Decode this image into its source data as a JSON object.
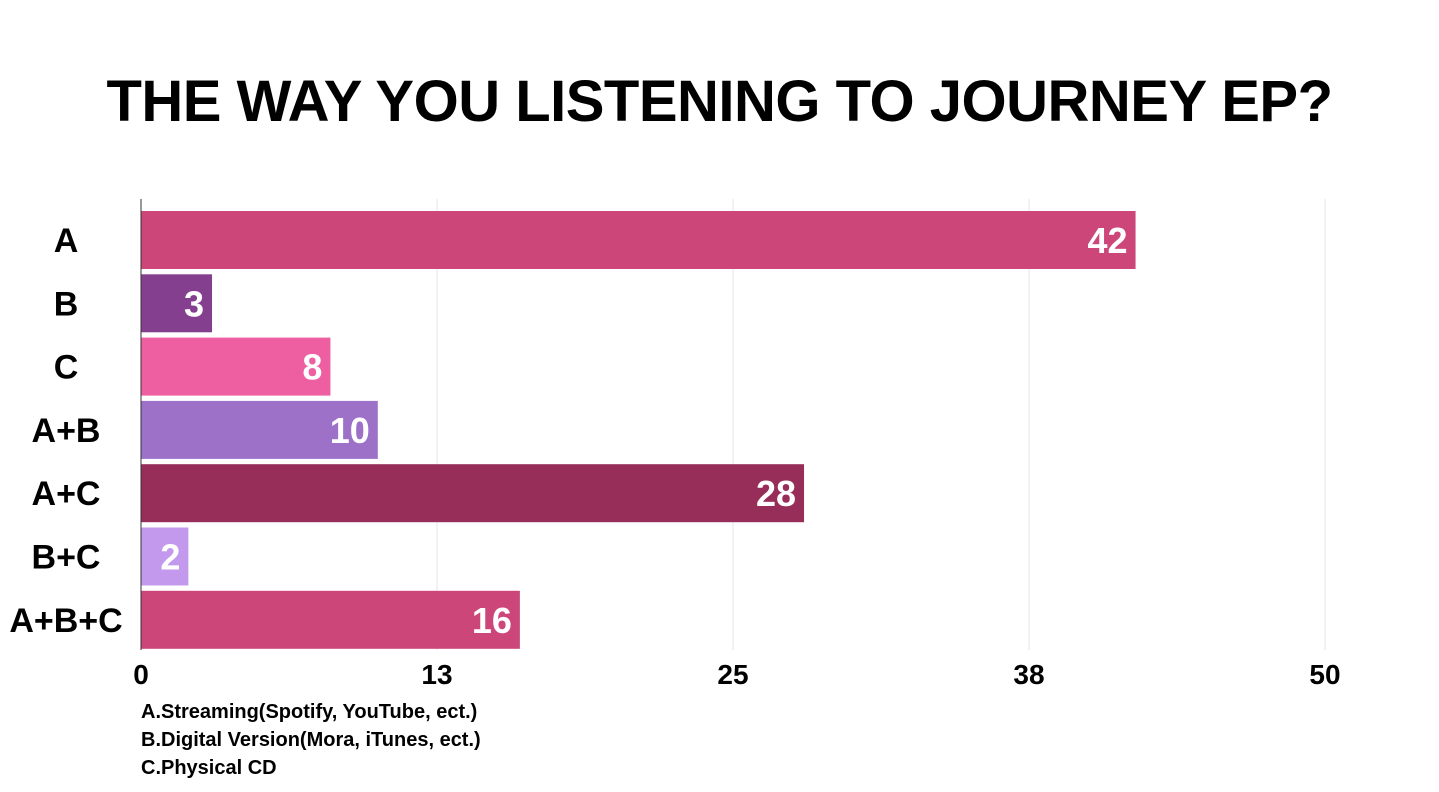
{
  "chart_data": {
    "type": "bar",
    "orientation": "horizontal",
    "title": "THE WAY YOU LISTENING TO JOURNEY EP?",
    "categories": [
      "A",
      "B",
      "C",
      "A+B",
      "A+C",
      "B+C",
      "A+B+C"
    ],
    "values": [
      42,
      3,
      8,
      10,
      28,
      2,
      16
    ],
    "data_labels": [
      "42",
      "3",
      "8",
      "10",
      "28",
      "2",
      "16"
    ],
    "colors": [
      "#cc4679",
      "#843f8f",
      "#ee5fa1",
      "#9e71c9",
      "#972e5a",
      "#c299ec",
      "#cc4679"
    ],
    "xlim": [
      0,
      50
    ],
    "x_ticks": [
      0,
      12.5,
      25,
      37.5,
      50
    ],
    "x_tick_labels": [
      "0",
      "13",
      "25",
      "38",
      "50"
    ],
    "grid": true,
    "xlabel": "",
    "ylabel": ""
  },
  "legend_notes": [
    "A.Streaming(Spotify, YouTube, ect.)",
    "B.Digital Version(Mora, iTunes, ect.)",
    "C.Physical CD"
  ]
}
